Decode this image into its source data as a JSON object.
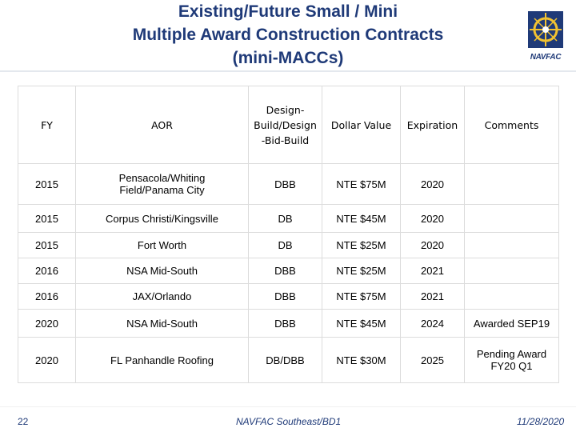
{
  "title": {
    "line1": "Existing/Future Small / Mini",
    "line2": "Multiple Award Construction Contracts",
    "line3": "(mini-MACCs)"
  },
  "logo": {
    "text": "NAVFAC",
    "icon": "navfac-compass-logo"
  },
  "table": {
    "headers": {
      "fy": "FY",
      "aor": "AOR",
      "design_line1": "Design-",
      "design_line2": "Build/Design",
      "design_line3": "-Bid-Build",
      "dollar": "Dollar Value",
      "expiration": "Expiration",
      "comments": "Comments"
    },
    "rows": [
      {
        "fy": "2015",
        "aor_line1": "Pensacola/Whiting",
        "aor_line2": "Field/Panama City",
        "type": "DBB",
        "value": "NTE $75M",
        "exp": "2020",
        "comment_line1": "",
        "comment_line2": ""
      },
      {
        "fy": "2015",
        "aor_line1": "Corpus Christi/Kingsville",
        "aor_line2": "",
        "type": "DB",
        "value": "NTE $45M",
        "exp": "2020",
        "comment_line1": "",
        "comment_line2": ""
      },
      {
        "fy": "2015",
        "aor_line1": "Fort Worth",
        "aor_line2": "",
        "type": "DB",
        "value": "NTE $25M",
        "exp": "2020",
        "comment_line1": "",
        "comment_line2": ""
      },
      {
        "fy": "2016",
        "aor_line1": "NSA Mid-South",
        "aor_line2": "",
        "type": "DBB",
        "value": "NTE $25M",
        "exp": "2021",
        "comment_line1": "",
        "comment_line2": ""
      },
      {
        "fy": "2016",
        "aor_line1": "JAX/Orlando",
        "aor_line2": "",
        "type": "DBB",
        "value": "NTE $75M",
        "exp": "2021",
        "comment_line1": "",
        "comment_line2": ""
      },
      {
        "fy": "2020",
        "aor_line1": "NSA Mid-South",
        "aor_line2": "",
        "type": "DBB",
        "value": "NTE $45M",
        "exp": "2024",
        "comment_line1": "Awarded SEP19",
        "comment_line2": ""
      },
      {
        "fy": "2020",
        "aor_line1": "FL Panhandle Roofing",
        "aor_line2": "",
        "type": "DB/DBB",
        "value": "NTE $30M",
        "exp": "2025",
        "comment_line1": "Pending Award",
        "comment_line2": "FY20 Q1"
      }
    ]
  },
  "footer": {
    "page": "22",
    "center": "NAVFAC Southeast/BD1",
    "date": "11/28/2020"
  }
}
